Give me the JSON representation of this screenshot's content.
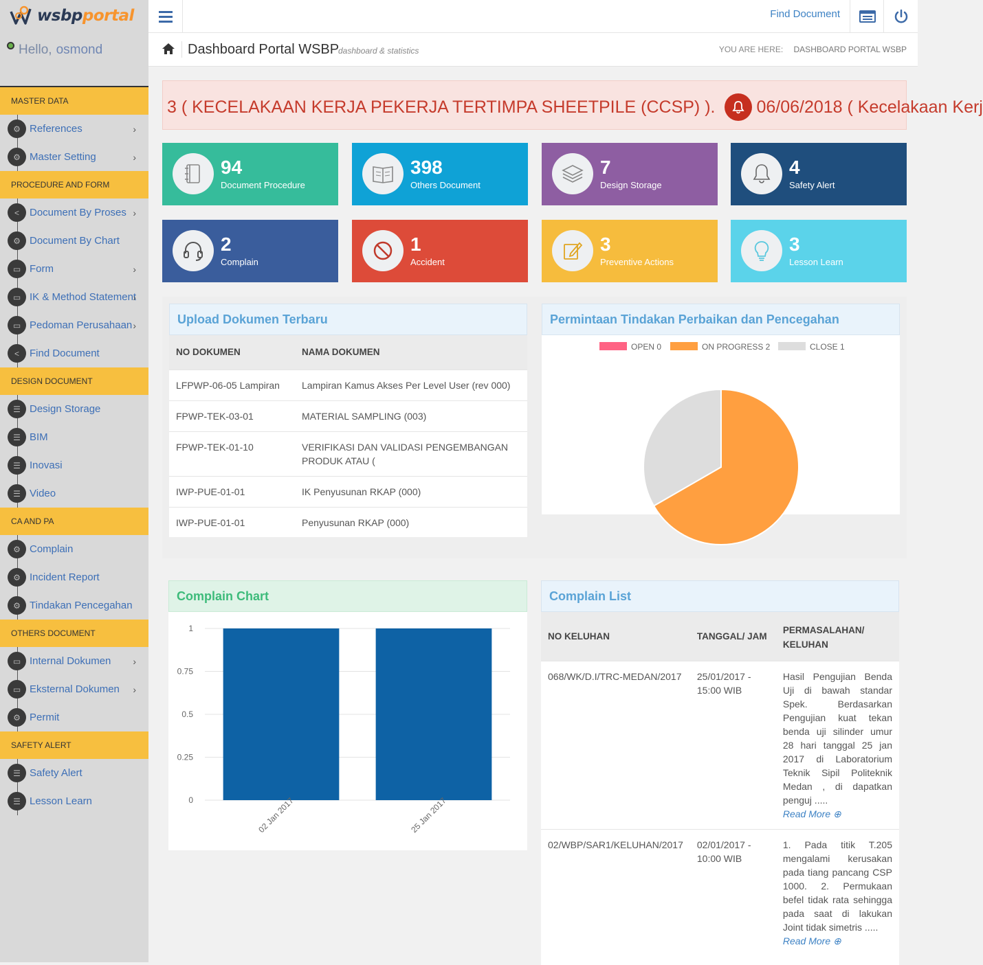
{
  "brand": {
    "ws": "wsbp",
    "portal": "portal"
  },
  "user": {
    "greeting": "Hello,",
    "name": "osmond"
  },
  "sidebar": {
    "groups": [
      {
        "title": "MASTER DATA",
        "items": [
          {
            "label": "References",
            "icon": "gear-icon",
            "chevron": true
          },
          {
            "label": "Master Setting",
            "icon": "gear-icon",
            "chevron": true
          }
        ]
      },
      {
        "title": "PROCEDURE AND FORM",
        "items": [
          {
            "label": "Document By Proses",
            "icon": "share-icon",
            "chevron": true
          },
          {
            "label": "Document By Chart",
            "icon": "gear-icon",
            "chevron": false
          },
          {
            "label": "Form",
            "icon": "monitor-icon",
            "chevron": true
          },
          {
            "label": "IK & Method Statement",
            "icon": "monitor-icon",
            "chevron": true
          },
          {
            "label": "Pedoman Perusahaan",
            "icon": "monitor-icon",
            "chevron": true
          },
          {
            "label": "Find Document",
            "icon": "share-icon",
            "chevron": false
          }
        ]
      },
      {
        "title": "DESIGN DOCUMENT",
        "items": [
          {
            "label": "Design Storage",
            "icon": "list-icon",
            "chevron": false
          },
          {
            "label": "BIM",
            "icon": "list-icon",
            "chevron": false
          },
          {
            "label": "Inovasi",
            "icon": "list-icon",
            "chevron": false
          },
          {
            "label": "Video",
            "icon": "list-icon",
            "chevron": false
          }
        ]
      },
      {
        "title": "CA AND PA",
        "items": [
          {
            "label": "Complain",
            "icon": "gear-icon",
            "chevron": false
          },
          {
            "label": "Incident Report",
            "icon": "gear-icon",
            "chevron": false
          },
          {
            "label": "Tindakan Pencegahan",
            "icon": "gear-icon",
            "chevron": false
          }
        ]
      },
      {
        "title": "OTHERS DOCUMENT",
        "items": [
          {
            "label": "Internal Dokumen",
            "icon": "monitor-icon",
            "chevron": true
          },
          {
            "label": "Eksternal Dokumen",
            "icon": "monitor-icon",
            "chevron": true
          },
          {
            "label": "Permit",
            "icon": "gear-icon",
            "chevron": false
          }
        ]
      },
      {
        "title": "SAFETY ALERT",
        "items": [
          {
            "label": "Safety Alert",
            "icon": "list-icon",
            "chevron": false
          },
          {
            "label": "Lesson Learn",
            "icon": "list-icon",
            "chevron": false
          }
        ]
      }
    ]
  },
  "topbar": {
    "find_document": "Find Document"
  },
  "page": {
    "title": "Dashboard Portal WSBP",
    "subtitle": "dashboard & statistics",
    "breadcrumb_prefix": "YOU ARE HERE:",
    "breadcrumb_current": "DASHBOARD PORTAL WSBP"
  },
  "ticker": {
    "text_before": "3 ( KECELAKAAN KERJA PEKERJA TERTIMPA SHEETPILE (CCSP) ).",
    "text_after": "06/06/2018 ( Kecelakaan Kerj"
  },
  "tiles": [
    {
      "value": "94",
      "label": "Document Procedure",
      "color": "#36bc9b",
      "icon": "notebook-icon"
    },
    {
      "value": "398",
      "label": "Others Document",
      "color": "#0fa2d6",
      "icon": "book-icon"
    },
    {
      "value": "7",
      "label": "Design Storage",
      "color": "#8e5ea2",
      "icon": "layers-icon"
    },
    {
      "value": "4",
      "label": "Safety Alert",
      "color": "#1f4e7d",
      "icon": "bell-icon"
    },
    {
      "value": "2",
      "label": "Complain",
      "color": "#3a5d9c",
      "icon": "headset-icon"
    },
    {
      "value": "1",
      "label": "Accident",
      "color": "#dd4b39",
      "icon": "ban-icon"
    },
    {
      "value": "3",
      "label": "Preventive Actions",
      "color": "#f6bc3d",
      "icon": "edit-icon"
    },
    {
      "value": "3",
      "label": "Lesson Learn",
      "color": "#5bd3ea",
      "icon": "bulb-icon"
    }
  ],
  "upload": {
    "title": "Upload Dokumen Terbaru",
    "headers": [
      "NO DOKUMEN",
      "NAMA DOKUMEN"
    ],
    "rows": [
      [
        "LFPWP-06-05 Lampiran",
        "Lampiran Kamus Akses Per Level User (rev 000)"
      ],
      [
        "FPWP-TEK-03-01",
        "MATERIAL SAMPLING (003)"
      ],
      [
        "FPWP-TEK-01-10",
        "VERIFIKASI DAN VALIDASI PENGEMBANGAN PRODUK ATAU ("
      ],
      [
        "IWP-PUE-01-01",
        "IK Penyusunan RKAP (000)"
      ],
      [
        "IWP-PUE-01-01",
        "Penyusunan RKAP (000)"
      ]
    ]
  },
  "pie_panel": {
    "title": "Permintaan Tindakan Perbaikan dan Pencegahan"
  },
  "bar_panel": {
    "title": "Complain Chart"
  },
  "complain": {
    "title": "Complain List",
    "headers": [
      "NO KELUHAN",
      "TANGGAL/ JAM",
      "PERMASALAHAN/ KELUHAN"
    ],
    "read_more": "Read More",
    "rows": [
      {
        "no": "068/WK/D.I/TRC-MEDAN/2017",
        "date": "25/01/2017 - 15:00 WIB",
        "text": "Hasil Pengujian Benda Uji di bawah standar Spek. Berdasarkan Pengujian kuat tekan benda uji silinder umur 28 hari tanggal 25 jan 2017 di Laboratorium Teknik Sipil Politeknik Medan , di dapatkan penguj ....."
      },
      {
        "no": "02/WBP/SAR1/KELUHAN/2017",
        "date": "02/01/2017 - 10:00 WIB",
        "text": "1. Pada titik T.205 mengalami kerusakan pada tiang pancang CSP 1000. 2. Permukaan befel tidak rata sehingga pada saat di lakukan Joint tidak simetris ....."
      }
    ]
  },
  "chart_data": [
    {
      "type": "pie",
      "labels": [
        "OPEN",
        "ON PROGRESS",
        "CLOSE"
      ],
      "values": [
        0,
        2,
        1
      ],
      "legend": [
        "OPEN 0",
        "ON PROGRESS 2",
        "CLOSE 1"
      ],
      "colors": [
        "#ff6384",
        "#ff9f40",
        "#dddddd"
      ],
      "legend_position": "top"
    },
    {
      "type": "bar",
      "categories": [
        "02 Jan 2017",
        "25 Jan 2017"
      ],
      "values": [
        1,
        1
      ],
      "ylim": [
        0,
        1
      ],
      "yticks": [
        "0",
        "0.25",
        "0.5",
        "0.75",
        "1"
      ],
      "color": "#0e62a5",
      "grid": true
    }
  ]
}
